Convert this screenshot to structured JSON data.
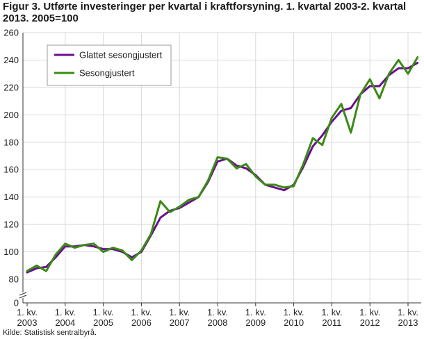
{
  "title": "Figur 3. Utførte investeringer per kvartal i kraftforsyning. 1. kvartal 2003-2. kvartal 2013. 2005=100",
  "source": "Kilde: Statistisk sentralbyrå.",
  "colors": {
    "series_smoothed": "#6a0f8e",
    "series_adjusted": "#3a8a16",
    "grid": "#d9d9d9",
    "axis": "#333333"
  },
  "chart_data": {
    "type": "line",
    "xlabel": "",
    "ylabel": "",
    "ylim": [
      0,
      260
    ],
    "axis_break": [
      0,
      80
    ],
    "y_ticks": [
      0,
      80,
      100,
      120,
      140,
      160,
      180,
      200,
      220,
      240,
      260
    ],
    "grid": true,
    "legend_position": "top-left",
    "x_tick_labels": [
      {
        "line1": "1. kv.",
        "line2": "2003"
      },
      {
        "line1": "1. kv.",
        "line2": "2004"
      },
      {
        "line1": "1. kv.",
        "line2": "2005"
      },
      {
        "line1": "1. kv.",
        "line2": "2006"
      },
      {
        "line1": "1. kv.",
        "line2": "2007"
      },
      {
        "line1": "1. kv.",
        "line2": "2008"
      },
      {
        "line1": "1. kv.",
        "line2": "2009"
      },
      {
        "line1": "1. kv.",
        "line2": "2010"
      },
      {
        "line1": "1. kv.",
        "line2": "2011"
      },
      {
        "line1": "1. kv.",
        "line2": "2012"
      },
      {
        "line1": "1. kv.",
        "line2": "2013"
      }
    ],
    "x": [
      "2003K1",
      "2003K2",
      "2003K3",
      "2003K4",
      "2004K1",
      "2004K2",
      "2004K3",
      "2004K4",
      "2005K1",
      "2005K2",
      "2005K3",
      "2005K4",
      "2006K1",
      "2006K2",
      "2006K3",
      "2006K4",
      "2007K1",
      "2007K2",
      "2007K3",
      "2007K4",
      "2008K1",
      "2008K2",
      "2008K3",
      "2008K4",
      "2009K1",
      "2009K2",
      "2009K3",
      "2009K4",
      "2010K1",
      "2010K2",
      "2010K3",
      "2010K4",
      "2011K1",
      "2011K2",
      "2011K3",
      "2011K4",
      "2012K1",
      "2012K2",
      "2012K3",
      "2012K4",
      "2013K1",
      "2013K2"
    ],
    "series": [
      {
        "name": "Glattet sesongjustert",
        "color": "#6a0f8e",
        "values": [
          85,
          88,
          89,
          96,
          104,
          104,
          105,
          104,
          102,
          102,
          100,
          96,
          100,
          112,
          125,
          130,
          132,
          136,
          140,
          151,
          166,
          168,
          163,
          161,
          156,
          149,
          147,
          145,
          149,
          162,
          177,
          185,
          195,
          203,
          205,
          215,
          221,
          221,
          229,
          234,
          234,
          238
        ]
      },
      {
        "name": "Sesongjustert",
        "color": "#3a8a16",
        "values": [
          86,
          90,
          86,
          98,
          106,
          103,
          105,
          106,
          100,
          103,
          101,
          94,
          101,
          113,
          137,
          129,
          133,
          138,
          140,
          152,
          169,
          168,
          161,
          164,
          155,
          149,
          149,
          147,
          148,
          164,
          183,
          178,
          198,
          208,
          187,
          215,
          226,
          212,
          230,
          240,
          230,
          242
        ]
      }
    ]
  }
}
